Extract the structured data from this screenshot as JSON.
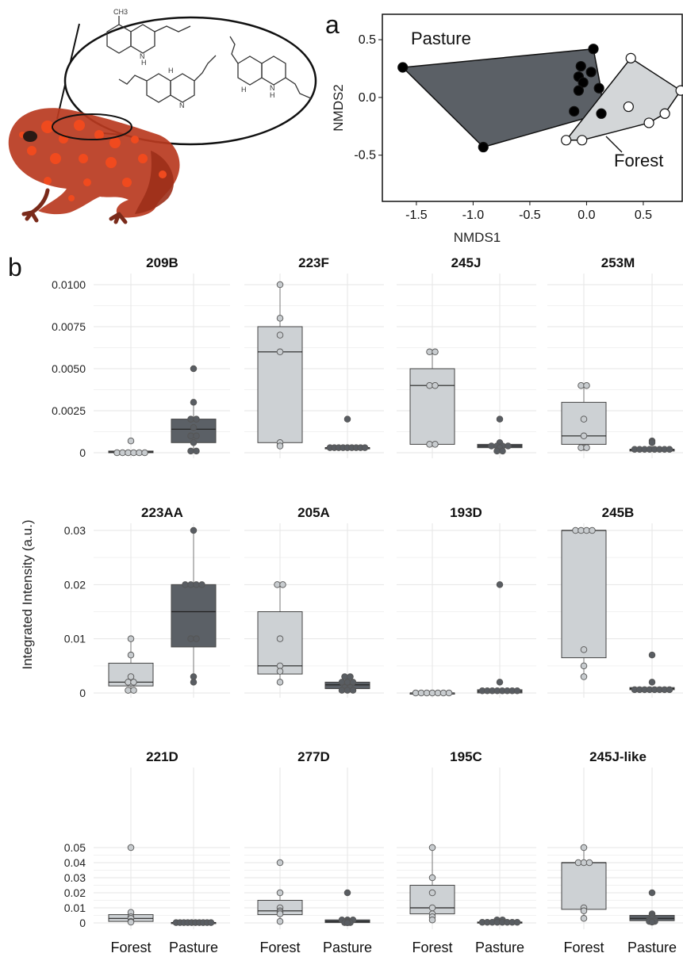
{
  "figure": {
    "panel_a_letter": "a",
    "panel_b_letter": "b",
    "ylabel": "Integrated Intensity (a.u.)",
    "inset_labels": [
      "CH3",
      "N",
      "H",
      "N",
      "H",
      "H",
      "N",
      "H"
    ]
  },
  "colors": {
    "forest_fill": "#cdd1d4",
    "pasture_fill": "#5b6066",
    "forest_point": "#c8cccf",
    "pasture_point": "#595d62",
    "frog_body": "#b8391f",
    "frog_spots": "#f04a1e",
    "grid": "#e6e6e6"
  },
  "chart_data": [
    {
      "type": "scatter",
      "panel": "a",
      "xlabel": "NMDS1",
      "ylabel": "NMDS2",
      "xlim": [
        -1.8,
        0.85
      ],
      "ylim": [
        -0.9,
        0.72
      ],
      "xticks": [
        "-1.5",
        "-1.0",
        "-0.5",
        "0.0",
        "0.5"
      ],
      "xtick_values": [
        -1.5,
        -1.0,
        -0.5,
        0.0,
        0.5
      ],
      "yticks": [
        "0.5",
        "0.0",
        "-0.5"
      ],
      "ytick_values": [
        0.5,
        0.0,
        -0.5
      ],
      "grid": false,
      "series": [
        {
          "name": "Pasture",
          "color": "#000000",
          "hull_color": "#5b6066",
          "points": [
            [
              -1.62,
              0.26
            ],
            [
              0.06,
              0.42
            ],
            [
              -0.91,
              -0.43
            ],
            [
              -0.05,
              0.27
            ],
            [
              0.04,
              0.22
            ],
            [
              -0.07,
              0.18
            ],
            [
              -0.03,
              0.13
            ],
            [
              0.11,
              0.08
            ],
            [
              -0.07,
              0.06
            ],
            [
              -0.11,
              -0.12
            ],
            [
              0.13,
              -0.14
            ]
          ],
          "hull": [
            [
              -1.62,
              0.26
            ],
            [
              0.06,
              0.42
            ],
            [
              0.13,
              0.06
            ],
            [
              0.13,
              -0.14
            ],
            [
              -0.91,
              -0.43
            ]
          ]
        },
        {
          "name": "Forest",
          "color": "#ffffff",
          "hull_color": "#d3d6d8",
          "points": [
            [
              0.39,
              0.34
            ],
            [
              0.83,
              0.06
            ],
            [
              0.37,
              -0.08
            ],
            [
              0.69,
              -0.14
            ],
            [
              0.55,
              -0.22
            ],
            [
              -0.04,
              -0.37
            ],
            [
              -0.18,
              -0.37
            ]
          ],
          "hull": [
            [
              0.39,
              0.34
            ],
            [
              0.83,
              0.06
            ],
            [
              0.69,
              -0.14
            ],
            [
              0.55,
              -0.22
            ],
            [
              -0.04,
              -0.37
            ],
            [
              -0.18,
              -0.37
            ]
          ]
        }
      ]
    },
    {
      "type": "box",
      "panel": "b",
      "ylabel": "Integrated Intensity (a.u.)",
      "categories": [
        "Forest",
        "Pasture"
      ],
      "grid": true,
      "rows": [
        {
          "ylim": [
            0,
            0.0107
          ],
          "yticks": [
            "0.0100",
            "0.0075",
            "0.0050",
            "0.0025",
            "0"
          ],
          "ytick_values": [
            0.01,
            0.0075,
            0.005,
            0.0025,
            0
          ],
          "panels": [
            {
              "title": "209B",
              "Forest": {
                "q1": 0,
                "median": 5e-05,
                "q3": 0.0001,
                "whisker_low": 0,
                "whisker_high": 0.0001,
                "points": [
                  0.0007,
                  0,
                  0,
                  0,
                  0,
                  0,
                  0
                ]
              },
              "Pasture": {
                "q1": 0.0006,
                "median": 0.0014,
                "q3": 0.002,
                "whisker_low": 0.0001,
                "whisker_high": 0.003,
                "points": [
                  0.005,
                  0.003,
                  0.002,
                  0.002,
                  0.0015,
                  0.001,
                  0.001,
                  0.0006,
                  0.0001,
                  0.0001
                ]
              }
            },
            {
              "title": "223F",
              "Forest": {
                "q1": 0.0006,
                "median": 0.006,
                "q3": 0.0075,
                "whisker_low": 0.0004,
                "whisker_high": 0.01,
                "points": [
                  0.01,
                  0.008,
                  0.007,
                  0.006,
                  0.0006,
                  0.0004
                ]
              },
              "Pasture": {
                "q1": 0.0003,
                "median": 0.0003,
                "q3": 0.0003,
                "whisker_low": 0.0003,
                "whisker_high": 0.0003,
                "points": [
                  0.002,
                  0.0003,
                  0.0003,
                  0.0003,
                  0.0003,
                  0.0003,
                  0.0003,
                  0.0003,
                  0.0003,
                  0.0003
                ]
              }
            },
            {
              "title": "245J",
              "Forest": {
                "q1": 0.0005,
                "median": 0.004,
                "q3": 0.005,
                "whisker_low": 0.0004,
                "whisker_high": 0.006,
                "points": [
                  0.006,
                  0.006,
                  0.004,
                  0.004,
                  0.0005,
                  0.0005
                ]
              },
              "Pasture": {
                "q1": 0.0003,
                "median": 0.0004,
                "q3": 0.0005,
                "whisker_low": 0.0001,
                "whisker_high": 0.0006,
                "points": [
                  0.002,
                  0.0006,
                  0.0004,
                  0.0004,
                  0.0004,
                  0.0004,
                  0.0003,
                  0.0001,
                  0.0001
                ]
              }
            },
            {
              "title": "253M",
              "Forest": {
                "q1": 0.0005,
                "median": 0.001,
                "q3": 0.003,
                "whisker_low": 0.0001,
                "whisker_high": 0.004,
                "points": [
                  0.004,
                  0.004,
                  0.002,
                  0.001,
                  0.0003,
                  0.0003
                ]
              },
              "Pasture": {
                "q1": 0.0001,
                "median": 0.0002,
                "q3": 0.0002,
                "whisker_low": 0.0001,
                "whisker_high": 0.0006,
                "points": [
                  0.0007,
                  0.0006,
                  0.0002,
                  0.0002,
                  0.0002,
                  0.0002,
                  0.0002,
                  0.0002,
                  0.0002,
                  0.0002
                ]
              }
            }
          ]
        },
        {
          "ylim": [
            0,
            0.032
          ],
          "yticks": [
            "0.03",
            "0.02",
            "0.01",
            "0"
          ],
          "ytick_values": [
            0.03,
            0.02,
            0.01,
            0
          ],
          "panels": [
            {
              "title": "223AA",
              "Forest": {
                "q1": 0.0013,
                "median": 0.002,
                "q3": 0.0055,
                "whisker_low": 0.0005,
                "whisker_high": 0.01,
                "points": [
                  0.01,
                  0.007,
                  0.003,
                  0.002,
                  0.002,
                  0.0005,
                  0.0005
                ]
              },
              "Pasture": {
                "q1": 0.0085,
                "median": 0.015,
                "q3": 0.02,
                "whisker_low": 0.002,
                "whisker_high": 0.03,
                "points": [
                  0.03,
                  0.02,
                  0.02,
                  0.02,
                  0.02,
                  0.01,
                  0.01,
                  0.003,
                  0.002
                ]
              }
            },
            {
              "title": "205A",
              "Forest": {
                "q1": 0.0035,
                "median": 0.005,
                "q3": 0.015,
                "whisker_low": 0.002,
                "whisker_high": 0.02,
                "points": [
                  0.02,
                  0.02,
                  0.01,
                  0.005,
                  0.004,
                  0.002
                ]
              },
              "Pasture": {
                "q1": 0.0008,
                "median": 0.0015,
                "q3": 0.002,
                "whisker_low": 0.0005,
                "whisker_high": 0.003,
                "points": [
                  0.003,
                  0.003,
                  0.002,
                  0.002,
                  0.002,
                  0.001,
                  0.001,
                  0.0005,
                  0.0005,
                  0.0005
                ]
              }
            },
            {
              "title": "193D",
              "Forest": {
                "q1": 0,
                "median": 0,
                "q3": 0,
                "whisker_low": 0,
                "whisker_high": 0,
                "points": [
                  0,
                  0,
                  0,
                  0,
                  0,
                  0,
                  0
                ]
              },
              "Pasture": {
                "q1": 0,
                "median": 0.0003,
                "q3": 0.0006,
                "whisker_low": 0,
                "whisker_high": 0.0006,
                "points": [
                  0.02,
                  0.002,
                  0.0004,
                  0.0004,
                  0.0004,
                  0.0004,
                  0.0004,
                  0.0004,
                  0.0004,
                  0.0004
                ]
              }
            },
            {
              "title": "245B",
              "Forest": {
                "q1": 0.0065,
                "median": 0.03,
                "q3": 0.03,
                "whisker_low": 0.003,
                "whisker_high": 0.03,
                "points": [
                  0.03,
                  0.03,
                  0.03,
                  0.03,
                  0.008,
                  0.005,
                  0.003
                ]
              },
              "Pasture": {
                "q1": 0.0006,
                "median": 0.0008,
                "q3": 0.001,
                "whisker_low": 0.0004,
                "whisker_high": 0.001,
                "points": [
                  0.007,
                  0.002,
                  0.0006,
                  0.0006,
                  0.0006,
                  0.0006,
                  0.0006,
                  0.0006,
                  0.0006,
                  0.0006
                ]
              }
            }
          ]
        },
        {
          "ylim": [
            0,
            0.0535
          ],
          "yticks": [
            "0.05",
            "0.04",
            "0.03",
            "0.02",
            "0.01",
            "0"
          ],
          "ytick_values": [
            0.05,
            0.04,
            0.03,
            0.02,
            0.01,
            0
          ],
          "panels": [
            {
              "title": "221D",
              "Forest": {
                "q1": 0.001,
                "median": 0.003,
                "q3": 0.0055,
                "whisker_low": 0.0005,
                "whisker_high": 0.007,
                "points": [
                  0.05,
                  0.007,
                  0.004,
                  0.003,
                  0.001,
                  0.0005
                ]
              },
              "Pasture": {
                "q1": 0.0001,
                "median": 0.0002,
                "q3": 0.0003,
                "whisker_low": 0.0001,
                "whisker_high": 0.0004,
                "points": [
                  0.0002,
                  0.0002,
                  0.0002,
                  0.0002,
                  0.0002,
                  0.0002,
                  0.0002,
                  0.0002,
                  0.0002,
                  0.0002
                ]
              }
            },
            {
              "title": "277D",
              "Forest": {
                "q1": 0.0055,
                "median": 0.008,
                "q3": 0.015,
                "whisker_low": 0.001,
                "whisker_high": 0.02,
                "points": [
                  0.04,
                  0.02,
                  0.01,
                  0.008,
                  0.007,
                  0.006,
                  0.001
                ]
              },
              "Pasture": {
                "q1": 0.0002,
                "median": 0.001,
                "q3": 0.002,
                "whisker_low": 0.0001,
                "whisker_high": 0.002,
                "points": [
                  0.02,
                  0.002,
                  0.002,
                  0.002,
                  0.001,
                  0.0005,
                  0.0003,
                  0.0002,
                  0.0002,
                  0.0001
                ]
              }
            },
            {
              "title": "195C",
              "Forest": {
                "q1": 0.006,
                "median": 0.01,
                "q3": 0.025,
                "whisker_low": 0.002,
                "whisker_high": 0.05,
                "points": [
                  0.05,
                  0.03,
                  0.02,
                  0.01,
                  0.006,
                  0.004,
                  0.002
                ]
              },
              "Pasture": {
                "q1": 0.0002,
                "median": 0.0004,
                "q3": 0.0006,
                "whisker_low": 0.0001,
                "whisker_high": 0.002,
                "points": [
                  0.002,
                  0.002,
                  0.0004,
                  0.0004,
                  0.0004,
                  0.0004,
                  0.0004,
                  0.0004,
                  0.0004,
                  0.0004
                ]
              }
            },
            {
              "title": "245J-like",
              "Forest": {
                "q1": 0.009,
                "median": 0.04,
                "q3": 0.04,
                "whisker_low": 0.003,
                "whisker_high": 0.05,
                "points": [
                  0.05,
                  0.04,
                  0.04,
                  0.04,
                  0.01,
                  0.008,
                  0.003
                ]
              },
              "Pasture": {
                "q1": 0.0015,
                "median": 0.003,
                "q3": 0.005,
                "whisker_low": 0.0005,
                "whisker_high": 0.006,
                "points": [
                  0.02,
                  0.006,
                  0.005,
                  0.004,
                  0.003,
                  0.002,
                  0.002,
                  0.001,
                  0.001,
                  0.0005
                ]
              }
            }
          ]
        }
      ]
    }
  ]
}
